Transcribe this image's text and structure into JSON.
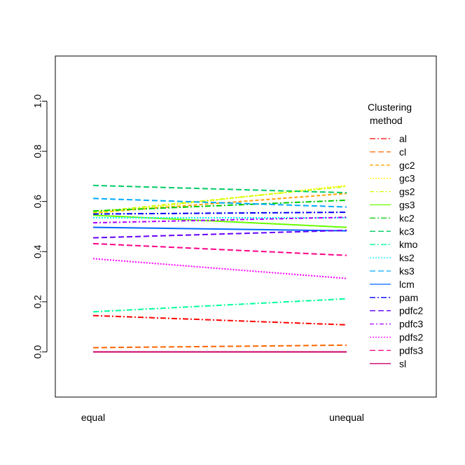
{
  "chart_data": {
    "type": "line",
    "title": "",
    "xlabel": "",
    "ylabel": "",
    "categories": [
      "equal",
      "unequal"
    ],
    "ylim": [
      -0.18,
      1.18
    ],
    "yticks": [
      0.0,
      0.2,
      0.4,
      0.6,
      0.8,
      1.0
    ],
    "ytick_labels": [
      "0.0",
      "0.2",
      "0.4",
      "0.6",
      "0.8",
      "1.0"
    ],
    "grid": false,
    "legend": {
      "title_line1": "Clustering",
      "title_line2": "method",
      "placement": "right",
      "bordered": false
    },
    "series": [
      {
        "name": "al",
        "values": [
          0.145,
          0.108
        ],
        "color": "#ff0000",
        "dash": "8,3,2,3"
      },
      {
        "name": "cl",
        "values": [
          0.017,
          0.027
        ],
        "color": "#ff6600",
        "dash": "8,4"
      },
      {
        "name": "gc2",
        "values": [
          0.555,
          0.632
        ],
        "color": "#ffa500",
        "dash": "5,3"
      },
      {
        "name": "gc3",
        "values": [
          0.552,
          0.664
        ],
        "color": "#ffff00",
        "dash": "2,2"
      },
      {
        "name": "gs2",
        "values": [
          0.558,
          0.66
        ],
        "color": "#ccff00",
        "dash": "6,3,2,3"
      },
      {
        "name": "gs3",
        "values": [
          0.545,
          0.497
        ],
        "color": "#66ff00",
        "dash": ""
      },
      {
        "name": "kc2",
        "values": [
          0.562,
          0.605
        ],
        "color": "#00cc00",
        "dash": "8,3,2,3"
      },
      {
        "name": "kc3",
        "values": [
          0.664,
          0.635
        ],
        "color": "#00cc66",
        "dash": "8,4"
      },
      {
        "name": "kmo",
        "values": [
          0.16,
          0.212
        ],
        "color": "#00ff99",
        "dash": "8,3,2,3"
      },
      {
        "name": "ks2",
        "values": [
          0.535,
          0.535
        ],
        "color": "#00ffff",
        "dash": "2,2"
      },
      {
        "name": "ks3",
        "values": [
          0.612,
          0.578
        ],
        "color": "#00aaff",
        "dash": "8,4"
      },
      {
        "name": "lcm",
        "values": [
          0.497,
          0.483
        ],
        "color": "#0066ff",
        "dash": ""
      },
      {
        "name": "pam",
        "values": [
          0.55,
          0.557
        ],
        "color": "#0000ff",
        "dash": "8,3,2,3"
      },
      {
        "name": "pdfc2",
        "values": [
          0.455,
          0.485
        ],
        "color": "#6600ff",
        "dash": "8,4"
      },
      {
        "name": "pdfc3",
        "values": [
          0.515,
          0.537
        ],
        "color": "#aa00ff",
        "dash": "6,3,2,3"
      },
      {
        "name": "pdfs2",
        "values": [
          0.372,
          0.293
        ],
        "color": "#ff00ff",
        "dash": "2,2"
      },
      {
        "name": "pdfs3",
        "values": [
          0.432,
          0.385
        ],
        "color": "#ff0088",
        "dash": "8,4"
      },
      {
        "name": "sl",
        "values": [
          0.0,
          0.0
        ],
        "color": "#cc0066",
        "dash": ""
      }
    ]
  }
}
